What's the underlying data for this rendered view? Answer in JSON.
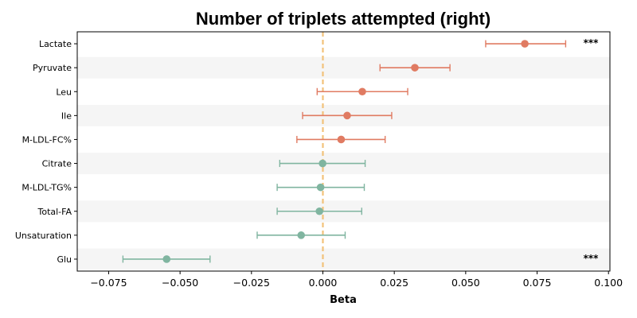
{
  "chart_data": {
    "type": "forest",
    "title": "Number of triplets attempted (right)",
    "xlabel": "Beta",
    "ylabel": "",
    "xlim": [
      -0.086,
      0.1005
    ],
    "xticks": [
      "−0.075",
      "−0.050",
      "−0.025",
      "0.000",
      "0.025",
      "0.050",
      "0.075",
      "0.100"
    ],
    "xtick_values": [
      -0.075,
      -0.05,
      -0.025,
      0.0,
      0.025,
      0.05,
      0.075,
      0.1
    ],
    "reference_line": 0.0,
    "reference_line_color": "#f2c27a",
    "colors": {
      "positive": "#e07b62",
      "negative": "#80b5a0",
      "band": "#f5f5f5"
    },
    "grid": false,
    "rows": [
      {
        "label": "Lactate",
        "beta": 0.0707,
        "ci_low": 0.057,
        "ci_high": 0.085,
        "sig": "***"
      },
      {
        "label": "Pyruvate",
        "beta": 0.0322,
        "ci_low": 0.02,
        "ci_high": 0.0445,
        "sig": ""
      },
      {
        "label": "Leu",
        "beta": 0.0138,
        "ci_low": -0.002,
        "ci_high": 0.0297,
        "sig": ""
      },
      {
        "label": "Ile",
        "beta": 0.0085,
        "ci_low": -0.0071,
        "ci_high": 0.0241,
        "sig": ""
      },
      {
        "label": "M-LDL-FC%",
        "beta": 0.0064,
        "ci_low": -0.0091,
        "ci_high": 0.0218,
        "sig": ""
      },
      {
        "label": "Citrate",
        "beta": -0.0001,
        "ci_low": -0.0151,
        "ci_high": 0.0148,
        "sig": ""
      },
      {
        "label": "M-LDL-TG%",
        "beta": -0.0008,
        "ci_low": -0.016,
        "ci_high": 0.0145,
        "sig": ""
      },
      {
        "label": "Total-FA",
        "beta": -0.0012,
        "ci_low": -0.016,
        "ci_high": 0.0136,
        "sig": ""
      },
      {
        "label": "Unsaturation",
        "beta": -0.0076,
        "ci_low": -0.023,
        "ci_high": 0.0078,
        "sig": ""
      },
      {
        "label": "Glu",
        "beta": -0.0547,
        "ci_low": -0.07,
        "ci_high": -0.0395,
        "sig": "***"
      }
    ]
  }
}
